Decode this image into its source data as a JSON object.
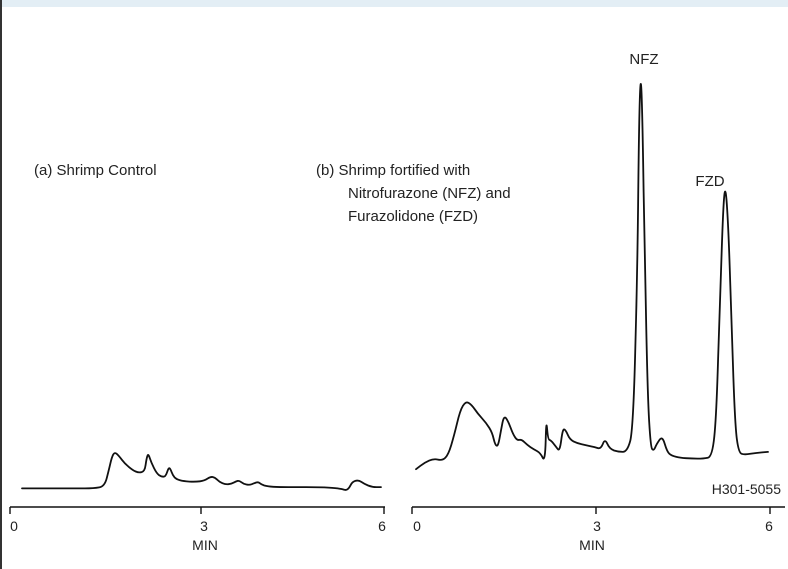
{
  "chart_data": [
    {
      "type": "line",
      "title": "(a)  Shrimp Control",
      "xlabel": "MIN",
      "ylabel": "",
      "xlim": [
        0,
        6
      ],
      "ticks": [
        "0",
        "3",
        "6"
      ],
      "grid": false,
      "x": [
        0,
        0.3,
        0.6,
        0.9,
        1.2,
        1.38,
        1.45,
        1.5,
        1.55,
        1.62,
        1.72,
        1.85,
        1.95,
        2.05,
        2.08,
        2.11,
        2.16,
        2.25,
        2.33,
        2.4,
        2.45,
        2.48,
        2.52,
        2.58,
        2.7,
        2.9,
        3.05,
        3.15,
        3.22,
        3.3,
        3.4,
        3.5,
        3.58,
        3.63,
        3.7,
        3.8,
        3.88,
        3.95,
        4.0,
        4.1,
        4.3,
        4.6,
        4.9,
        5.2,
        5.35,
        5.42,
        5.47,
        5.52,
        5.62,
        5.72,
        5.85,
        6.0
      ],
      "y": [
        0.2,
        0.2,
        0.2,
        0.2,
        0.2,
        0.35,
        1.6,
        2.6,
        3.0,
        2.7,
        2.1,
        1.6,
        1.4,
        1.5,
        2.5,
        2.9,
        2.2,
        1.35,
        1.1,
        1.1,
        1.8,
        1.7,
        1.2,
        0.9,
        0.75,
        0.7,
        0.8,
        1.1,
        1.05,
        0.7,
        0.5,
        0.55,
        0.75,
        0.8,
        0.55,
        0.45,
        0.6,
        0.7,
        0.5,
        0.35,
        0.3,
        0.3,
        0.3,
        0.25,
        0.15,
        0.05,
        0.25,
        0.7,
        0.85,
        0.55,
        0.3,
        0.3
      ]
    },
    {
      "type": "line",
      "title": "(b)  Shrimp fortified with",
      "subtitle_lines": [
        "Nitrofurazone (NFZ) and",
        "Furazolidone (FZD)"
      ],
      "xlabel": "MIN",
      "ylabel": "",
      "xlim": [
        0,
        6
      ],
      "ticks": [
        "0",
        "3",
        "6"
      ],
      "grid": false,
      "annotations": [
        {
          "text": "NFZ",
          "x": 3.85
        },
        {
          "text": "FZD",
          "x": 5.25
        }
      ],
      "code": "H301-5055",
      "x": [
        0,
        0.15,
        0.3,
        0.45,
        0.55,
        0.65,
        0.75,
        0.85,
        0.95,
        1.05,
        1.2,
        1.3,
        1.35,
        1.4,
        1.45,
        1.5,
        1.57,
        1.65,
        1.72,
        1.8,
        1.9,
        2.0,
        2.12,
        2.2,
        2.22,
        2.25,
        2.3,
        2.38,
        2.45,
        2.5,
        2.55,
        2.62,
        2.75,
        2.9,
        3.05,
        3.15,
        3.22,
        3.3,
        3.45,
        3.6,
        3.7,
        3.77,
        3.8,
        3.83,
        3.86,
        3.9,
        3.95,
        4.0,
        4.05,
        4.1,
        4.2,
        4.28,
        4.36,
        4.5,
        4.7,
        4.9,
        5.05,
        5.12,
        5.18,
        5.24,
        5.28,
        5.33,
        5.38,
        5.44,
        5.5,
        5.6,
        5.8,
        6.0
      ],
      "y": [
        0.5,
        1.2,
        1.6,
        1.4,
        2.0,
        4.0,
        6.6,
        7.6,
        7.2,
        6.3,
        5.3,
        4.3,
        3.0,
        2.9,
        4.6,
        6.1,
        5.5,
        4.2,
        3.5,
        3.6,
        3.0,
        2.6,
        2.2,
        1.2,
        5.8,
        3.6,
        3.5,
        2.9,
        2.3,
        4.7,
        4.6,
        3.6,
        3.2,
        3.0,
        2.8,
        2.6,
        3.7,
        2.6,
        2.3,
        2.3,
        4.5,
        20.0,
        36.0,
        42.0,
        37.0,
        22.0,
        8.0,
        2.8,
        2.4,
        3.1,
        4.0,
        2.3,
        1.9,
        1.7,
        1.6,
        1.6,
        1.8,
        6.0,
        18.0,
        28.5,
        30.0,
        25.0,
        15.0,
        5.0,
        2.2,
        2.0,
        2.2,
        2.3
      ]
    }
  ]
}
